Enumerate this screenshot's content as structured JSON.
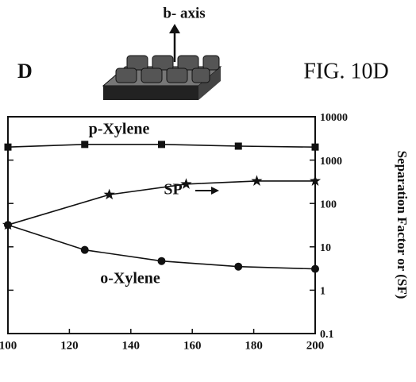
{
  "chart_data": {
    "type": "line",
    "panel": "D",
    "figure": "FIG. 10D",
    "inset_label": "b- axis",
    "y2label": "Separation Factor or (SF)",
    "log_scale": true,
    "xlim": [
      100,
      200
    ],
    "xticks": [
      100,
      120,
      140,
      160,
      180,
      200
    ],
    "y2lim": [
      0.1,
      10000
    ],
    "y2ticks": [
      0.1,
      1,
      10,
      100,
      1000,
      10000
    ],
    "series": [
      {
        "name": "p-Xylene",
        "marker": "square",
        "axis": "y2",
        "x": [
          100,
          125,
          150,
          175,
          200
        ],
        "values": [
          2000,
          2300,
          2300,
          2100,
          2000
        ]
      },
      {
        "name": "SP",
        "marker": "star",
        "axis": "y2",
        "x": [
          100,
          133,
          158,
          181,
          200
        ],
        "values": [
          32,
          160,
          280,
          330,
          330
        ]
      },
      {
        "name": "o-Xylene",
        "marker": "circle",
        "axis": "y2",
        "x": [
          100,
          125,
          150,
          175,
          200
        ],
        "values": [
          32,
          8.5,
          4.7,
          3.5,
          3.1
        ]
      }
    ]
  }
}
